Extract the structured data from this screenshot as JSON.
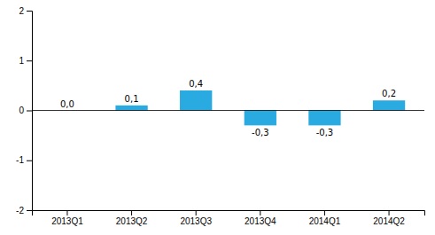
{
  "chart_data": {
    "type": "bar",
    "categories": [
      "2013Q1",
      "2013Q2",
      "2013Q3",
      "2013Q4",
      "2014Q1",
      "2014Q2"
    ],
    "values": [
      0.0,
      0.1,
      0.4,
      -0.3,
      -0.3,
      0.2
    ],
    "value_labels": [
      "0,0",
      "0,1",
      "0,4",
      "-0,3",
      "-0,3",
      "0,2"
    ],
    "color": "#29abe2",
    "ylim": [
      -2,
      2
    ],
    "yticks": [
      -2,
      -1,
      0,
      1,
      2
    ],
    "grid": false,
    "data_labels": true
  }
}
